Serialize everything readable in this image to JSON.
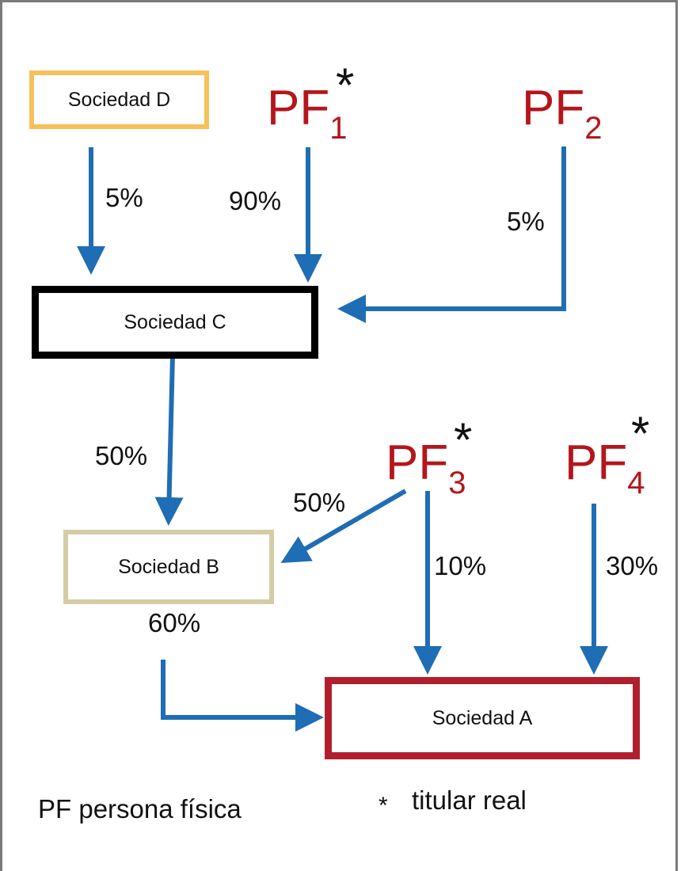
{
  "entities": {
    "soc_d": "Sociedad D",
    "soc_c": "Sociedad C",
    "soc_b": "Sociedad B",
    "soc_a": "Sociedad A"
  },
  "persons": {
    "pf1": {
      "base": "PF",
      "sub": "1",
      "star": "*"
    },
    "pf2": {
      "base": "PF",
      "sub": "2"
    },
    "pf3": {
      "base": "PF",
      "sub": "3",
      "star": "*"
    },
    "pf4": {
      "base": "PF",
      "sub": "4",
      "star": "*"
    }
  },
  "edges": {
    "d_to_c": "5%",
    "pf1_to_c": "90%",
    "pf2_to_c": "5%",
    "c_to_b": "50%",
    "pf3_to_b": "50%",
    "pf3_to_a": "10%",
    "pf4_to_a": "30%",
    "b_to_a": "60%"
  },
  "legend": {
    "pf": "PF persona física",
    "star": "*",
    "titular": "titular real"
  },
  "colors": {
    "arrow": "#1f6db4",
    "pf_text": "#b4161b",
    "soc_d_border": "#f7c05b",
    "soc_c_border": "#000000",
    "soc_b_border": "#d2cda6",
    "soc_a_border": "#b11f2e"
  }
}
